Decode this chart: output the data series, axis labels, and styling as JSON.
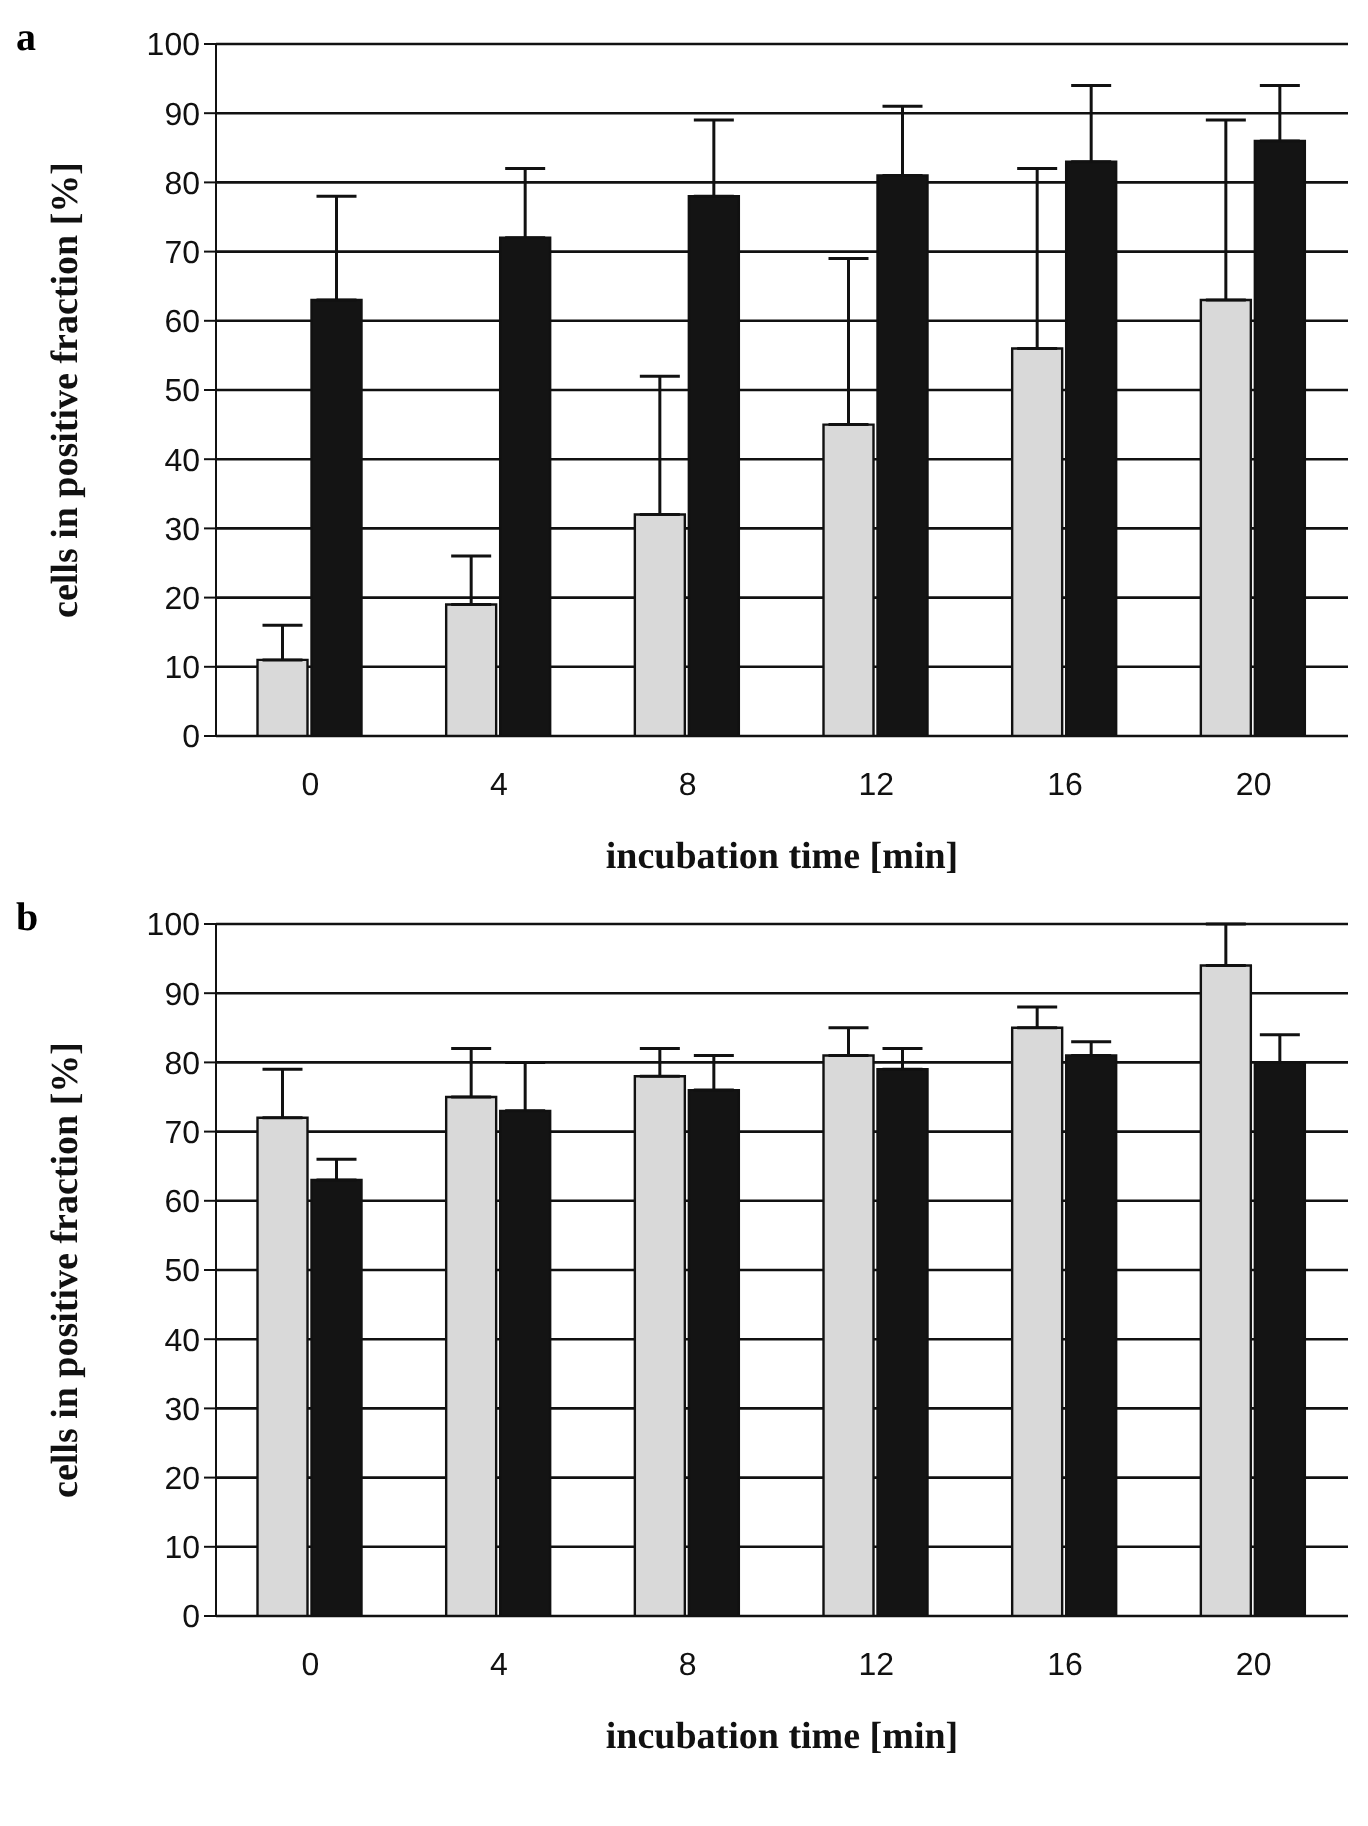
{
  "chart_data": [
    {
      "type": "bar",
      "title": "a",
      "xlabel": "incubation time [min]",
      "ylabel": "cells in positive fraction [%]",
      "categories": [
        "0",
        "4",
        "8",
        "12",
        "16",
        "20"
      ],
      "ylim": [
        0,
        100
      ],
      "yticks": [
        0,
        10,
        20,
        30,
        40,
        50,
        60,
        70,
        80,
        90,
        100
      ],
      "grid": "y",
      "legend": false,
      "series": [
        {
          "color": "#d9d9d9",
          "values": [
            11,
            19,
            32,
            45,
            56,
            63
          ],
          "errors": [
            [
              11,
              16
            ],
            [
              19,
              26
            ],
            [
              32,
              52
            ],
            [
              45,
              69
            ],
            [
              56,
              82
            ],
            [
              63,
              89
            ]
          ]
        },
        {
          "color": "#141414",
          "values": [
            63,
            72,
            78,
            81,
            83,
            86
          ],
          "errors": [
            [
              63,
              78
            ],
            [
              72,
              82
            ],
            [
              78,
              89
            ],
            [
              81,
              91
            ],
            [
              83,
              94
            ],
            [
              86,
              94
            ]
          ]
        }
      ]
    },
    {
      "type": "bar",
      "title": "b",
      "xlabel": "incubation time [min]",
      "ylabel": "cells in positive fraction [%]",
      "categories": [
        "0",
        "4",
        "8",
        "12",
        "16",
        "20"
      ],
      "ylim": [
        0,
        100
      ],
      "yticks": [
        0,
        10,
        20,
        30,
        40,
        50,
        60,
        70,
        80,
        90,
        100
      ],
      "grid": "y",
      "legend": false,
      "series": [
        {
          "color": "#d9d9d9",
          "values": [
            72,
            75,
            78,
            81,
            85,
            94
          ],
          "errors": [
            [
              72,
              79
            ],
            [
              75,
              82
            ],
            [
              78,
              82
            ],
            [
              81,
              85
            ],
            [
              85,
              88
            ],
            [
              94,
              100
            ]
          ]
        },
        {
          "color": "#141414",
          "values": [
            63,
            73,
            76,
            79,
            81,
            80
          ],
          "errors": [
            [
              63,
              66
            ],
            [
              73,
              80
            ],
            [
              76,
              81
            ],
            [
              79,
              82
            ],
            [
              81,
              83
            ],
            [
              80,
              84
            ]
          ]
        }
      ]
    }
  ]
}
